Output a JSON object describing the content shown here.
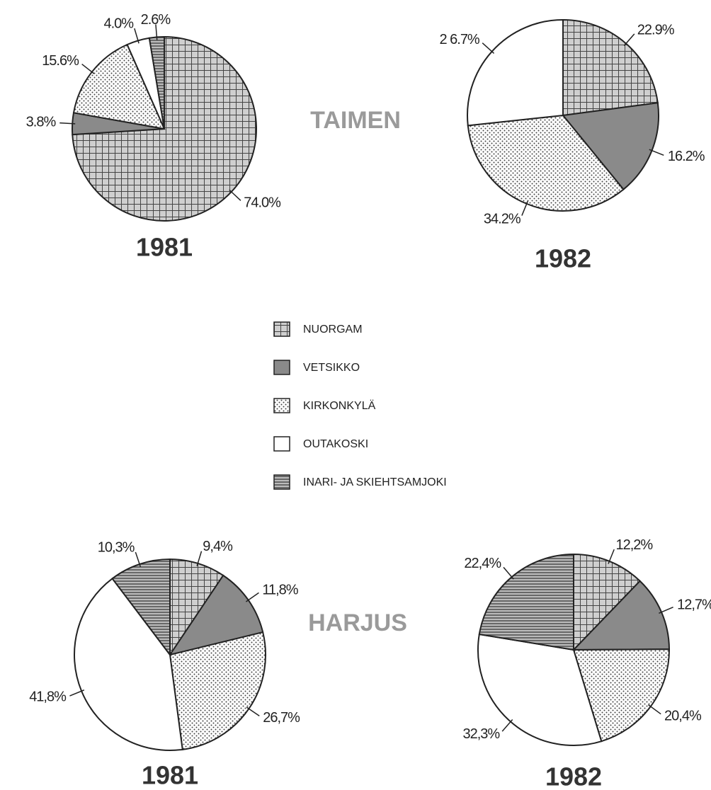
{
  "legend": {
    "labels": [
      "NUORGAM",
      "VETSIKKO",
      "KIRKONKYLÄ",
      "OUTAKOSKI",
      "INARI- JA  SKIEHTSAMJOKI"
    ],
    "fills": [
      "url(#p-grid)",
      "#8a8a8a",
      "url(#p-dots)",
      "#ffffff",
      "url(#p-hlines)"
    ]
  },
  "row_labels": [
    "TAIMEN",
    "HARJUS"
  ],
  "chart_data": [
    {
      "type": "pie",
      "title": "1981",
      "values": [
        74.0,
        3.8,
        15.6,
        4.0,
        2.6
      ],
      "value_labels": [
        "74.0%",
        "3.8%",
        "15.6%",
        "4.0%",
        "2.6%"
      ]
    },
    {
      "type": "pie",
      "title": "1982",
      "values": [
        22.9,
        16.2,
        34.2,
        26.7,
        null
      ],
      "value_labels": [
        "22.9%",
        "16.2%",
        "34.2%",
        "2 6.7%",
        null
      ]
    },
    {
      "type": "pie",
      "title": "1981",
      "values": [
        9.4,
        11.8,
        26.7,
        41.8,
        10.3
      ],
      "value_labels": [
        "9,4%",
        "11,8%",
        "26,7%",
        "41,8%",
        "10,3%"
      ]
    },
    {
      "type": "pie",
      "title": "1982",
      "values": [
        12.2,
        12.7,
        20.4,
        32.3,
        22.4
      ],
      "value_labels": [
        "12,2%",
        "12,7%",
        "20,4%",
        "32,3%",
        "22,4%"
      ]
    }
  ]
}
